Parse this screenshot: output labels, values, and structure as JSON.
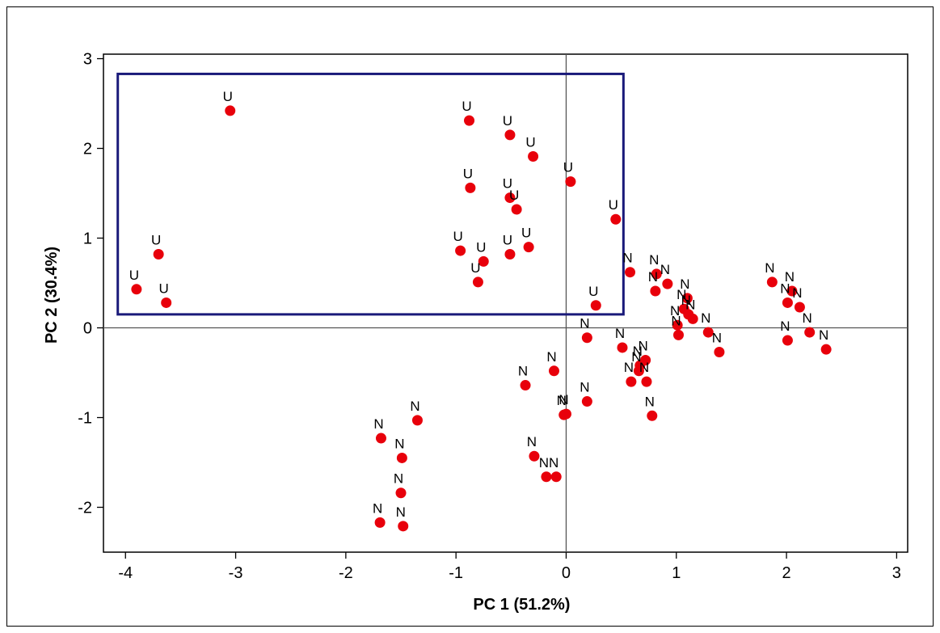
{
  "chart_data": {
    "type": "scatter",
    "title": "",
    "xlabel": "PC 1 (51.2%)",
    "ylabel": "PC 2 (30.4%)",
    "xlim": [
      -4.2,
      3.1
    ],
    "ylim": [
      -2.5,
      3.05
    ],
    "xticks": [
      -4,
      -3,
      -2,
      -1,
      0,
      1,
      2,
      3
    ],
    "yticks": [
      -2,
      -1,
      0,
      1,
      2,
      3
    ],
    "grid": false,
    "reference_lines": {
      "x": 0,
      "y": 0
    },
    "colors": {
      "marker": "#e8000b",
      "box": "#1a1a7a",
      "axis": "#000000",
      "reference": "#555555"
    },
    "highlight_box": {
      "x": [
        -4.07,
        0.52
      ],
      "y": [
        0.15,
        2.83
      ]
    },
    "points": [
      {
        "x": -3.05,
        "y": 2.42,
        "label": "U"
      },
      {
        "x": -3.7,
        "y": 0.82,
        "label": "U"
      },
      {
        "x": -3.9,
        "y": 0.43,
        "label": "U"
      },
      {
        "x": -3.63,
        "y": 0.28,
        "label": "U"
      },
      {
        "x": -0.88,
        "y": 2.31,
        "label": "U"
      },
      {
        "x": -0.51,
        "y": 2.15,
        "label": "U"
      },
      {
        "x": -0.3,
        "y": 1.91,
        "label": "U"
      },
      {
        "x": 0.04,
        "y": 1.63,
        "label": "U"
      },
      {
        "x": -0.87,
        "y": 1.56,
        "label": "U"
      },
      {
        "x": -0.51,
        "y": 1.45,
        "label": "U"
      },
      {
        "x": -0.45,
        "y": 1.32,
        "label": "U"
      },
      {
        "x": 0.45,
        "y": 1.21,
        "label": "U"
      },
      {
        "x": -0.96,
        "y": 0.86,
        "label": "U"
      },
      {
        "x": -0.75,
        "y": 0.74,
        "label": "U"
      },
      {
        "x": -0.51,
        "y": 0.82,
        "label": "U"
      },
      {
        "x": -0.34,
        "y": 0.9,
        "label": "U"
      },
      {
        "x": -0.8,
        "y": 0.51,
        "label": "U"
      },
      {
        "x": 0.27,
        "y": 0.25,
        "label": "U"
      },
      {
        "x": 0.58,
        "y": 0.62,
        "label": "N"
      },
      {
        "x": 0.82,
        "y": 0.6,
        "label": "N"
      },
      {
        "x": 0.92,
        "y": 0.49,
        "label": "N"
      },
      {
        "x": 0.81,
        "y": 0.41,
        "label": "N"
      },
      {
        "x": 1.1,
        "y": 0.33,
        "label": "N"
      },
      {
        "x": 1.07,
        "y": 0.21,
        "label": "N"
      },
      {
        "x": 1.11,
        "y": 0.15,
        "label": "N"
      },
      {
        "x": 1.15,
        "y": 0.1,
        "label": "N"
      },
      {
        "x": 1.01,
        "y": 0.03,
        "label": "N"
      },
      {
        "x": 1.02,
        "y": -0.08,
        "label": "N"
      },
      {
        "x": 1.29,
        "y": -0.05,
        "label": "N"
      },
      {
        "x": 1.39,
        "y": -0.27,
        "label": "N"
      },
      {
        "x": 1.87,
        "y": 0.51,
        "label": "N"
      },
      {
        "x": 2.05,
        "y": 0.41,
        "label": "N"
      },
      {
        "x": 2.01,
        "y": 0.28,
        "label": "N"
      },
      {
        "x": 2.12,
        "y": 0.23,
        "label": "N"
      },
      {
        "x": 2.21,
        "y": -0.05,
        "label": "N"
      },
      {
        "x": 2.01,
        "y": -0.14,
        "label": "N"
      },
      {
        "x": 2.36,
        "y": -0.24,
        "label": "N"
      },
      {
        "x": 0.19,
        "y": -0.11,
        "label": "N"
      },
      {
        "x": 0.51,
        "y": -0.22,
        "label": "N"
      },
      {
        "x": 0.72,
        "y": -0.36,
        "label": "N"
      },
      {
        "x": 0.67,
        "y": -0.42,
        "label": "N"
      },
      {
        "x": 0.66,
        "y": -0.48,
        "label": "N"
      },
      {
        "x": 0.59,
        "y": -0.6,
        "label": "N"
      },
      {
        "x": 0.73,
        "y": -0.6,
        "label": "N"
      },
      {
        "x": 0.78,
        "y": -0.98,
        "label": "N"
      },
      {
        "x": -0.11,
        "y": -0.48,
        "label": "N"
      },
      {
        "x": -0.37,
        "y": -0.64,
        "label": "N"
      },
      {
        "x": 0.19,
        "y": -0.82,
        "label": "N"
      },
      {
        "x": -0.02,
        "y": -0.97,
        "label": "N"
      },
      {
        "x": 0.0,
        "y": -0.96,
        "label": "N"
      },
      {
        "x": -0.29,
        "y": -1.43,
        "label": "N"
      },
      {
        "x": -0.18,
        "y": -1.66,
        "label": "N"
      },
      {
        "x": -0.09,
        "y": -1.66,
        "label": "N"
      },
      {
        "x": -1.35,
        "y": -1.03,
        "label": "N"
      },
      {
        "x": -1.68,
        "y": -1.23,
        "label": "N"
      },
      {
        "x": -1.49,
        "y": -1.45,
        "label": "N"
      },
      {
        "x": -1.5,
        "y": -1.84,
        "label": "N"
      },
      {
        "x": -1.69,
        "y": -2.17,
        "label": "N"
      },
      {
        "x": -1.48,
        "y": -2.21,
        "label": "N"
      }
    ]
  }
}
